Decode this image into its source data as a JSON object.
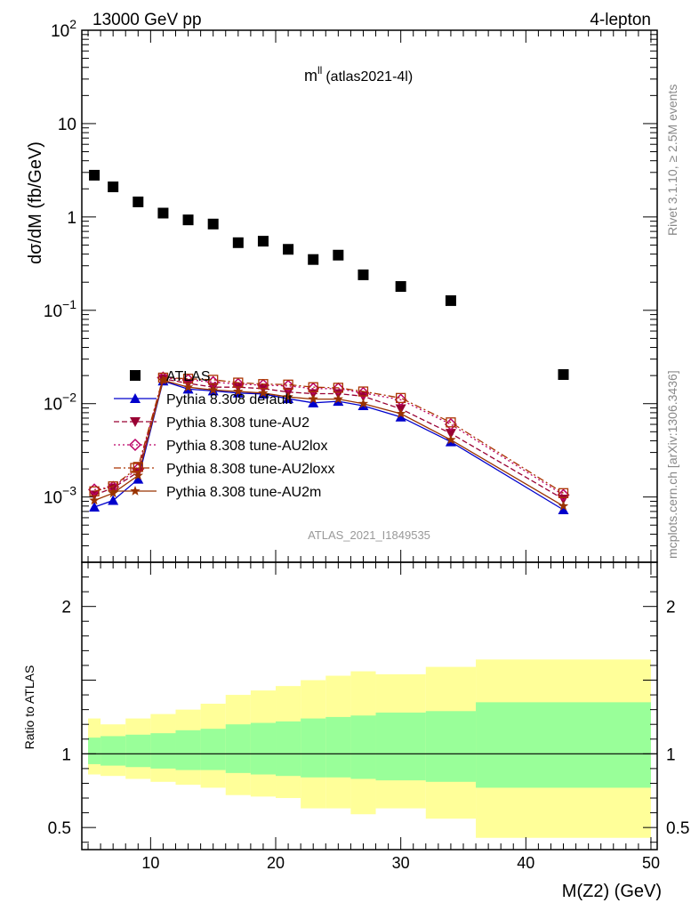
{
  "header": {
    "left": "13000 GeV pp",
    "right": "4-lepton"
  },
  "plot_title": {
    "main": "m",
    "sup": "ll",
    "sub": "(atlas2021-4l)"
  },
  "side_labels": {
    "rivet": "Rivet 3.1.10, ≥ 2.5M events",
    "mcplots": "mcplots.cern.ch [arXiv:1306.3436]"
  },
  "analysis_id": "ATLAS_2021_I1849535",
  "colors": {
    "data": "#000000",
    "default": "#0000cc",
    "au2": "#990033",
    "au2lox": "#bb0066",
    "au2loxx": "#aa3300",
    "au2m": "#993300",
    "band_inner": "#99ff99",
    "band_outer": "#ffff99"
  },
  "chart_data": [
    {
      "type": "line",
      "title": "m^ll (atlas2021-4l)",
      "ylabel": "dσ/dM (fb/GeV)",
      "xlabel": "",
      "yscale": "log",
      "xlim": [
        4.5,
        50.5
      ],
      "ylim": [
        0.0002,
        100
      ],
      "y_tick_labels": [
        "10^-3",
        "10^-2",
        "10^-1",
        "1",
        "10",
        "10^2"
      ],
      "legend_position": "lower-left",
      "x": [
        5.5,
        7,
        9,
        11,
        13,
        15,
        17,
        19,
        21,
        23,
        25,
        27,
        30,
        34,
        43
      ],
      "series": [
        {
          "name": "ATLAS",
          "marker": "square",
          "values": [
            2.8,
            2.1,
            1.45,
            1.1,
            0.93,
            0.84,
            0.53,
            0.55,
            0.45,
            0.35,
            0.39,
            0.24,
            0.18,
            0.127,
            0.0205
          ]
        },
        {
          "name": "Pythia 8.308 default",
          "marker": "triangle-up",
          "dash": "solid",
          "colorKey": "default",
          "values": [
            0.00078,
            0.00092,
            0.00155,
            0.0175,
            0.0143,
            0.0137,
            0.013,
            0.0127,
            0.0113,
            0.0102,
            0.0106,
            0.0095,
            0.0072,
            0.0039,
            0.00073
          ]
        },
        {
          "name": "Pythia 8.308 tune-AU2",
          "marker": "triangle-down",
          "dash": "dashed",
          "colorKey": "au2",
          "values": [
            0.00105,
            0.00125,
            0.00185,
            0.0185,
            0.0165,
            0.015,
            0.015,
            0.0145,
            0.0133,
            0.0128,
            0.0128,
            0.012,
            0.0088,
            0.0048,
            0.00095
          ]
        },
        {
          "name": "Pythia 8.308 tune-AU2lox",
          "marker": "diamond-open",
          "dash": "dotted",
          "colorKey": "au2lox",
          "values": [
            0.0012,
            0.00128,
            0.002,
            0.019,
            0.018,
            0.017,
            0.0162,
            0.0158,
            0.0155,
            0.0145,
            0.0145,
            0.013,
            0.011,
            0.006,
            0.00105
          ]
        },
        {
          "name": "Pythia 8.308 tune-AU2loxx",
          "marker": "square-open",
          "dash": "dashdot",
          "colorKey": "au2loxx",
          "values": [
            0.00115,
            0.0013,
            0.0021,
            0.019,
            0.0185,
            0.018,
            0.0168,
            0.0162,
            0.016,
            0.015,
            0.0148,
            0.0135,
            0.0115,
            0.0063,
            0.0011
          ]
        },
        {
          "name": "Pythia 8.308 tune-AU2m",
          "marker": "star",
          "dash": "solid",
          "colorKey": "au2m",
          "values": [
            0.00092,
            0.0011,
            0.0017,
            0.0178,
            0.015,
            0.014,
            0.0135,
            0.013,
            0.0118,
            0.0112,
            0.0112,
            0.01,
            0.0078,
            0.0041,
            0.0008
          ]
        }
      ]
    },
    {
      "type": "area",
      "title": "",
      "ylabel": "Ratio to ATLAS",
      "xlabel": "M(Z2) (GeV)",
      "yscale": "linear",
      "xlim": [
        4.5,
        50.5
      ],
      "ylim": [
        0.35,
        2.3
      ],
      "x_ticks": [
        10,
        20,
        30,
        40,
        50
      ],
      "y_ticks": [
        0.5,
        1,
        2
      ],
      "reference_line": 1,
      "bin_edges": [
        5,
        6,
        8,
        10,
        12,
        14,
        16,
        18,
        20,
        22,
        24,
        26,
        28,
        32,
        36,
        50
      ],
      "inner_band": {
        "low": [
          0.93,
          0.92,
          0.91,
          0.9,
          0.89,
          0.89,
          0.87,
          0.86,
          0.85,
          0.84,
          0.84,
          0.83,
          0.82,
          0.81,
          0.77
        ],
        "high": [
          1.11,
          1.12,
          1.13,
          1.14,
          1.16,
          1.17,
          1.2,
          1.21,
          1.22,
          1.24,
          1.25,
          1.26,
          1.28,
          1.29,
          1.35
        ]
      },
      "outer_band": {
        "low": [
          0.86,
          0.85,
          0.83,
          0.81,
          0.79,
          0.77,
          0.72,
          0.71,
          0.7,
          0.63,
          0.63,
          0.59,
          0.63,
          0.56,
          0.43
        ],
        "high": [
          1.24,
          1.2,
          1.24,
          1.27,
          1.3,
          1.34,
          1.4,
          1.43,
          1.46,
          1.5,
          1.53,
          1.56,
          1.54,
          1.59,
          1.64
        ]
      }
    }
  ]
}
